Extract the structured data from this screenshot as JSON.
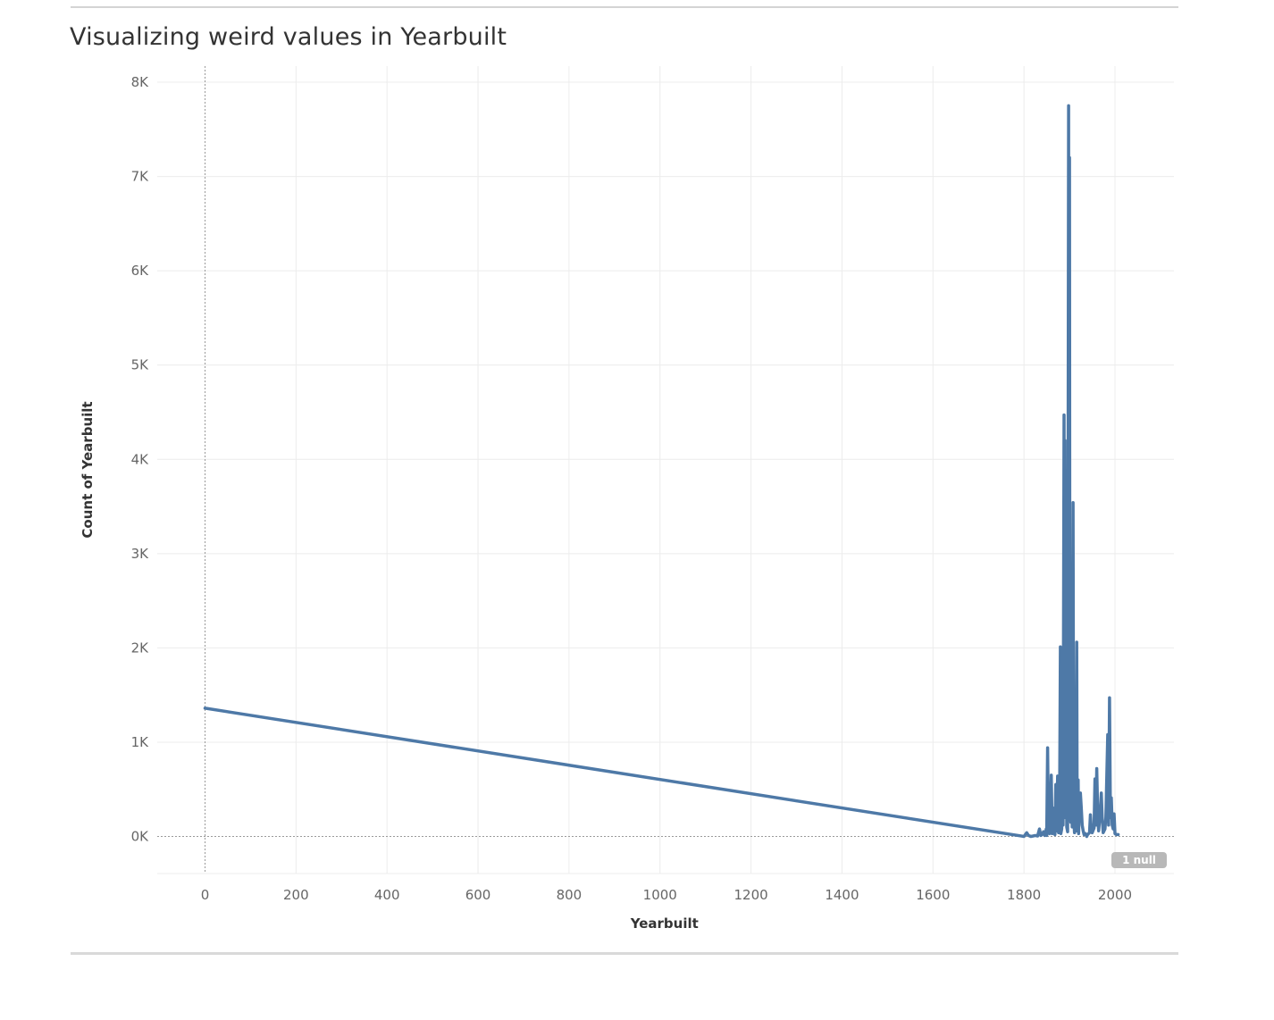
{
  "page": {
    "title": "Visualizing weird values in Yearbuilt"
  },
  "chart_data": {
    "type": "line",
    "title": "Visualizing weird values in Yearbuilt",
    "xlabel": "Yearbuilt",
    "ylabel": "Count of Yearbuilt",
    "xlim": [
      -100,
      2130
    ],
    "ylim": [
      -400,
      8150
    ],
    "x_ticks": [
      0,
      200,
      400,
      600,
      800,
      1000,
      1200,
      1400,
      1600,
      1800,
      2000
    ],
    "x_tick_labels": [
      "0",
      "200",
      "400",
      "600",
      "800",
      "1000",
      "1200",
      "1400",
      "1600",
      "1800",
      "2000"
    ],
    "y_ticks": [
      0,
      1000,
      2000,
      3000,
      4000,
      5000,
      6000,
      7000,
      8000
    ],
    "y_tick_labels": [
      "0K",
      "1K",
      "2K",
      "3K",
      "4K",
      "5K",
      "6K",
      "7K",
      "8K"
    ],
    "grid": true,
    "line_color": "#4e79a7",
    "null_indicator": "1 null",
    "series": [
      {
        "values": [
          [
            0,
            1360
          ],
          [
            1800,
            0
          ],
          [
            1803,
            20
          ],
          [
            1806,
            40
          ],
          [
            1810,
            10
          ],
          [
            1815,
            0
          ],
          [
            1820,
            5
          ],
          [
            1825,
            10
          ],
          [
            1830,
            5
          ],
          [
            1834,
            80
          ],
          [
            1837,
            10
          ],
          [
            1840,
            20
          ],
          [
            1843,
            50
          ],
          [
            1846,
            10
          ],
          [
            1849,
            80
          ],
          [
            1850,
            10
          ],
          [
            1852,
            940
          ],
          [
            1854,
            60
          ],
          [
            1856,
            30
          ],
          [
            1858,
            200
          ],
          [
            1860,
            650
          ],
          [
            1862,
            30
          ],
          [
            1864,
            300
          ],
          [
            1866,
            150
          ],
          [
            1868,
            20
          ],
          [
            1870,
            550
          ],
          [
            1872,
            60
          ],
          [
            1874,
            640
          ],
          [
            1876,
            40
          ],
          [
            1878,
            100
          ],
          [
            1880,
            2010
          ],
          [
            1881,
            30
          ],
          [
            1883,
            80
          ],
          [
            1884,
            900
          ],
          [
            1886,
            120
          ],
          [
            1888,
            4470
          ],
          [
            1889,
            200
          ],
          [
            1890,
            4200
          ],
          [
            1891,
            300
          ],
          [
            1893,
            3800
          ],
          [
            1894,
            100
          ],
          [
            1896,
            50
          ],
          [
            1898,
            7750
          ],
          [
            1899,
            200
          ],
          [
            1900,
            7200
          ],
          [
            1901,
            300
          ],
          [
            1903,
            150
          ],
          [
            1905,
            2800
          ],
          [
            1906,
            100
          ],
          [
            1908,
            3540
          ],
          [
            1909,
            200
          ],
          [
            1911,
            40
          ],
          [
            1913,
            1000
          ],
          [
            1914,
            60
          ],
          [
            1916,
            2060
          ],
          [
            1917,
            60
          ],
          [
            1919,
            600
          ],
          [
            1920,
            30
          ],
          [
            1922,
            400
          ],
          [
            1924,
            460
          ],
          [
            1926,
            300
          ],
          [
            1928,
            120
          ],
          [
            1930,
            60
          ],
          [
            1932,
            20
          ],
          [
            1935,
            30
          ],
          [
            1938,
            0
          ],
          [
            1940,
            20
          ],
          [
            1944,
            40
          ],
          [
            1946,
            230
          ],
          [
            1948,
            80
          ],
          [
            1950,
            40
          ],
          [
            1954,
            90
          ],
          [
            1956,
            610
          ],
          [
            1958,
            120
          ],
          [
            1960,
            720
          ],
          [
            1962,
            280
          ],
          [
            1964,
            60
          ],
          [
            1968,
            280
          ],
          [
            1970,
            460
          ],
          [
            1972,
            200
          ],
          [
            1974,
            40
          ],
          [
            1978,
            80
          ],
          [
            1980,
            200
          ],
          [
            1984,
            1080
          ],
          [
            1986,
            120
          ],
          [
            1988,
            1470
          ],
          [
            1990,
            200
          ],
          [
            1992,
            410
          ],
          [
            1994,
            120
          ],
          [
            1996,
            80
          ],
          [
            1998,
            240
          ],
          [
            2000,
            30
          ],
          [
            2003,
            20
          ],
          [
            2007,
            20
          ]
        ]
      }
    ]
  }
}
